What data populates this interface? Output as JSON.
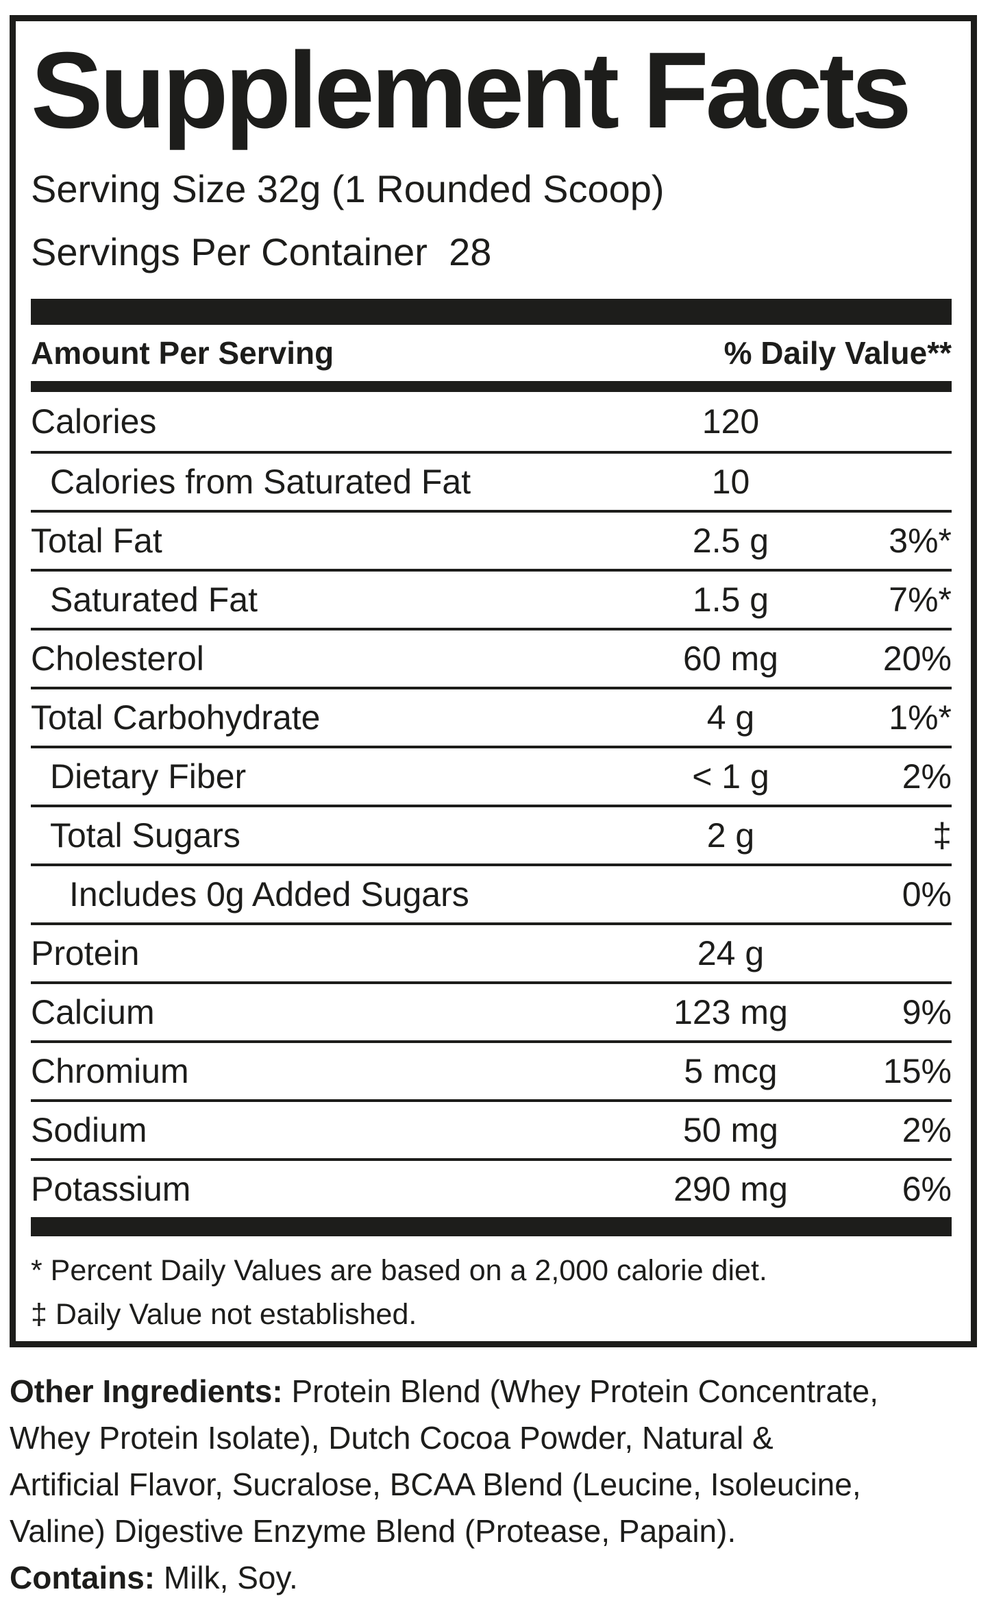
{
  "title": "Supplement Facts",
  "serving": {
    "size": "Serving Size 32g (1 Rounded Scoop)",
    "per_container": "Servings Per Container  28"
  },
  "table": {
    "header": {
      "left": "Amount Per Serving",
      "right": "% Daily Value**"
    },
    "rows": [
      {
        "label": "Calories",
        "amount": "120",
        "dv": "",
        "indent": 0
      },
      {
        "label": "Calories from Saturated Fat",
        "amount": "10",
        "dv": "",
        "indent": 1
      },
      {
        "label": "Total Fat",
        "amount": "2.5 g",
        "dv": "3%*",
        "indent": 0
      },
      {
        "label": "Saturated Fat",
        "amount": "1.5 g",
        "dv": "7%*",
        "indent": 1
      },
      {
        "label": "Cholesterol",
        "amount": "60 mg",
        "dv": "20%",
        "indent": 0
      },
      {
        "label": "Total Carbohydrate",
        "amount": "4 g",
        "dv": "1%*",
        "indent": 0
      },
      {
        "label": "Dietary Fiber",
        "amount": "< 1 g",
        "dv": "2%",
        "indent": 1
      },
      {
        "label": "Total Sugars",
        "amount": "2 g",
        "dv": "‡",
        "indent": 1
      },
      {
        "label": "Includes 0g Added Sugars",
        "amount": "",
        "dv": "0%",
        "indent": 2
      },
      {
        "label": "Protein",
        "amount": "24 g",
        "dv": "",
        "indent": 0
      },
      {
        "label": "Calcium",
        "amount": "123 mg",
        "dv": "9%",
        "indent": 0
      },
      {
        "label": "Chromium",
        "amount": "5 mcg",
        "dv": "15%",
        "indent": 0
      },
      {
        "label": "Sodium",
        "amount": "50 mg",
        "dv": "2%",
        "indent": 0
      },
      {
        "label": "Potassium",
        "amount": "290 mg",
        "dv": "6%",
        "indent": 0
      }
    ]
  },
  "footnotes": [
    "* Percent Daily Values are based on a 2,000 calorie diet.",
    "‡ Daily Value not established."
  ],
  "other_ingredients": {
    "lead": "Other Ingredients:",
    "lines": [
      " Protein Blend (Whey Protein Concentrate,",
      "Whey Protein Isolate), Dutch Cocoa Powder, Natural &",
      "Artificial Flavor, Sucralose, BCAA Blend (Leucine, Isoleucine,",
      "Valine) Digestive Enzyme Blend (Protease, Papain)."
    ]
  },
  "contains": {
    "lead": "Contains:",
    "rest": " Milk, Soy."
  },
  "colors": {
    "ink": "#1d1d1b",
    "background": "#ffffff"
  }
}
